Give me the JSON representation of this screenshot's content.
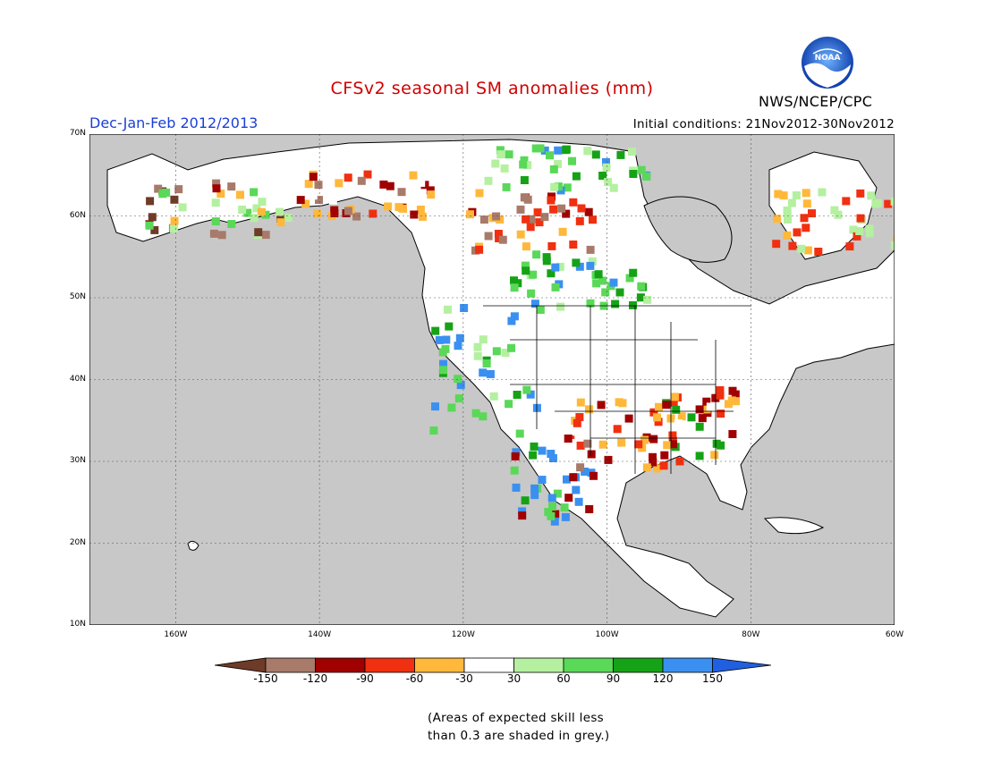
{
  "title": "CFSv2 seasonal SM anomalies (mm)",
  "period": "Dec-Jan-Feb 2012/2013",
  "initial_conditions": "Initial conditions: 21Nov2012-30Nov2012",
  "agency": "NWS/NCEP/CPC",
  "logo_text": "NOAA",
  "map": {
    "lat_labels": [
      "70N",
      "60N",
      "50N",
      "40N",
      "30N",
      "20N",
      "10N"
    ],
    "lon_labels": [
      "160W",
      "140W",
      "120W",
      "100W",
      "80W",
      "60W"
    ],
    "colors": {
      "grey_mask": "#c8c8c8",
      "land": "#ffffff",
      "gridline": "#555555"
    }
  },
  "colorbar": {
    "ticks": [
      "-150",
      "-120",
      "-90",
      "-60",
      "-30",
      "30",
      "60",
      "90",
      "120",
      "150"
    ],
    "colors": [
      "#6e3b28",
      "#a87a6a",
      "#a00000",
      "#f03010",
      "#ffb83a",
      "#ffffff",
      "#b4f0a0",
      "#5ad858",
      "#16a216",
      "#3a90f0",
      "#2060e0"
    ]
  },
  "skill_note": {
    "line1": "(Areas of expected skill less",
    "line2": "than 0.3 are shaded in grey.)"
  }
}
